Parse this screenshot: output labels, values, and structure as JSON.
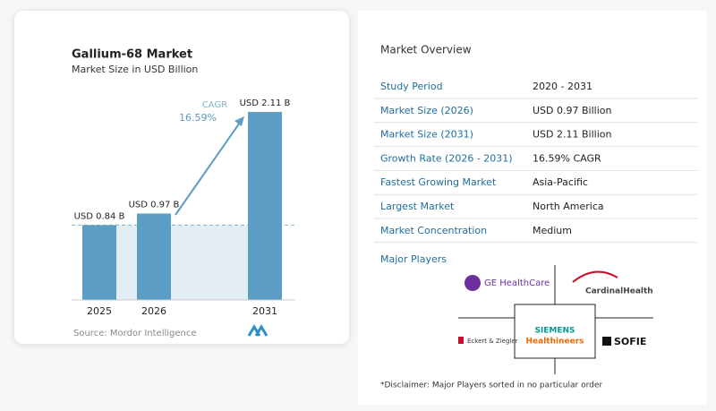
{
  "chart_data": {
    "type": "bar",
    "title": "Gallium-68 Market",
    "subtitle": "Market Size in USD Billion",
    "categories": [
      "2025",
      "2026",
      "2031"
    ],
    "values": [
      0.84,
      0.97,
      2.11
    ],
    "value_labels": [
      "USD 0.84 B",
      "USD 0.97 B",
      "USD 2.11 B"
    ],
    "color": "#5b9dc4",
    "annotation": {
      "label": "CAGR",
      "value": "16.59%"
    },
    "source": "Source: Mordor Intelligence"
  },
  "overview": {
    "title": "Market Overview",
    "rows": [
      [
        "Study Period",
        "2020 - 2031"
      ],
      [
        "Market Size (2026)",
        "USD 0.97 Billion"
      ],
      [
        "Market Size (2031)",
        "USD 2.11 Billion"
      ],
      [
        "Growth Rate (2026 - 2031)",
        "16.59% CAGR"
      ],
      [
        "Fastest Growing Market",
        "Asia-Pacific"
      ],
      [
        "Largest Market",
        "North America"
      ],
      [
        "Market Concentration",
        "Medium"
      ]
    ]
  },
  "major_players": {
    "title": "Major Players",
    "logos": [
      "GE HealthCare",
      "CardinalHealth",
      "SIEMENS",
      "Healthineers",
      "Eckert & Ziegler",
      "SOFIE"
    ]
  },
  "disclaimer": "*Disclaimer: Major Players sorted in no particular order"
}
